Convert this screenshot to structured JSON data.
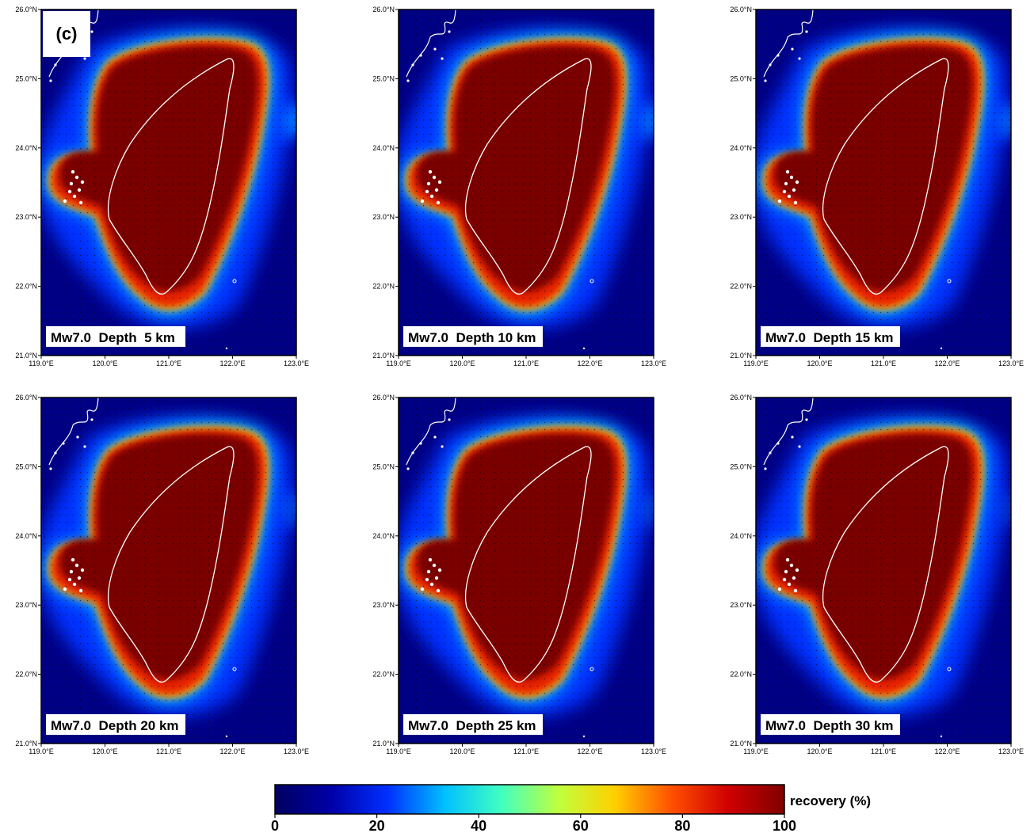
{
  "panel_label": "(c)",
  "lat_ticks": [
    "26.0°N",
    "25.0°N",
    "24.0°N",
    "23.0°N",
    "22.0°N",
    "21.0°N"
  ],
  "lon_ticks": [
    "119.0°E",
    "120.0°E",
    "121.0°E",
    "122.0°E",
    "123.0°E"
  ],
  "maps": [
    {
      "label": "Mw7.0  Depth  5 km",
      "east_halo": 1.0
    },
    {
      "label": "Mw7.0  Depth 10 km",
      "east_halo": 0.9
    },
    {
      "label": "Mw7.0  Depth 15 km",
      "east_halo": 0.8
    },
    {
      "label": "Mw7.0  Depth 20 km",
      "east_halo": 0.55
    },
    {
      "label": "Mw7.0  Depth 25 km",
      "east_halo": 0.45
    },
    {
      "label": "Mw7.0  Depth 30 km",
      "east_halo": 0.3
    }
  ],
  "colorbar": {
    "title": "recovery (%)",
    "ticks": [
      "0",
      "20",
      "40",
      "60",
      "80",
      "100"
    ],
    "colors": [
      "#000060",
      "#0000a8",
      "#0030ff",
      "#00c0ff",
      "#40ffc0",
      "#c0ff40",
      "#ffd000",
      "#ff5000",
      "#d00000",
      "#800000"
    ]
  },
  "colors": {
    "land_fill": "#7a0000",
    "coast": "#ffffff",
    "ocean": "#000085"
  }
}
